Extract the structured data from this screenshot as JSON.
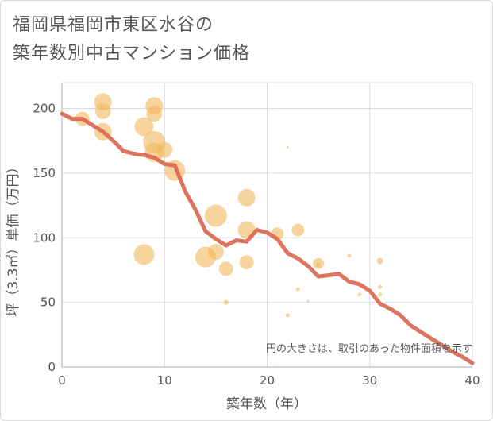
{
  "title_lines": [
    "福岡県福岡市東区水谷の",
    "築年数別中古マンション価格"
  ],
  "chart_data": {
    "type": "scatter",
    "title": "福岡県福岡市東区水谷の築年数別中古マンション価格",
    "xlabel": "築年数（年）",
    "ylabel": "坪（3.3㎡）単価（万円）",
    "xlim": [
      0,
      40
    ],
    "ylim": [
      0,
      220
    ],
    "xticks": [
      0,
      10,
      20,
      30,
      40
    ],
    "yticks": [
      0,
      50,
      100,
      150,
      200
    ],
    "grid": true,
    "note": "円の大きさは、取引のあった物件面積を示す",
    "colors": {
      "bubble": "#f2b75b",
      "line": "#d9654e",
      "grid": "#d5dbe5"
    },
    "bubbles": [
      {
        "x": 2,
        "y": 192,
        "s": 9
      },
      {
        "x": 4,
        "y": 205,
        "s": 11
      },
      {
        "x": 4,
        "y": 198,
        "s": 10
      },
      {
        "x": 4,
        "y": 182,
        "s": 11
      },
      {
        "x": 8,
        "y": 186,
        "s": 12
      },
      {
        "x": 9,
        "y": 202,
        "s": 11
      },
      {
        "x": 9,
        "y": 196,
        "s": 10
      },
      {
        "x": 9,
        "y": 174,
        "s": 14
      },
      {
        "x": 9,
        "y": 166,
        "s": 12
      },
      {
        "x": 10,
        "y": 168,
        "s": 10
      },
      {
        "x": 11,
        "y": 152,
        "s": 13
      },
      {
        "x": 8,
        "y": 87,
        "s": 13
      },
      {
        "x": 14,
        "y": 85,
        "s": 13
      },
      {
        "x": 15,
        "y": 117,
        "s": 14
      },
      {
        "x": 15,
        "y": 89,
        "s": 10
      },
      {
        "x": 16,
        "y": 76,
        "s": 9
      },
      {
        "x": 16,
        "y": 50,
        "s": 3
      },
      {
        "x": 18,
        "y": 131,
        "s": 11
      },
      {
        "x": 18,
        "y": 106,
        "s": 11
      },
      {
        "x": 18,
        "y": 81,
        "s": 9
      },
      {
        "x": 21,
        "y": 103,
        "s": 8
      },
      {
        "x": 22,
        "y": 170,
        "s": 1.5
      },
      {
        "x": 22,
        "y": 40,
        "s": 2.5
      },
      {
        "x": 23,
        "y": 106,
        "s": 8
      },
      {
        "x": 23,
        "y": 60,
        "s": 2.5
      },
      {
        "x": 24,
        "y": 51,
        "s": 1.5
      },
      {
        "x": 25,
        "y": 80,
        "s": 7
      },
      {
        "x": 25,
        "y": 79,
        "s": 3
      },
      {
        "x": 28,
        "y": 86,
        "s": 2.5
      },
      {
        "x": 29,
        "y": 56,
        "s": 2.5
      },
      {
        "x": 31,
        "y": 82,
        "s": 4
      },
      {
        "x": 31,
        "y": 62,
        "s": 2.5
      },
      {
        "x": 31,
        "y": 56,
        "s": 2.5
      }
    ],
    "trend": {
      "x": [
        0,
        1,
        2,
        3,
        4,
        5,
        6,
        7,
        8,
        9,
        10,
        11,
        12,
        13,
        14,
        15,
        16,
        17,
        18,
        19,
        20,
        21,
        22,
        23,
        24,
        25,
        26,
        27,
        28,
        29,
        30,
        31,
        32,
        33,
        34,
        35,
        36,
        37,
        38,
        39,
        40
      ],
      "y": [
        196,
        192,
        192,
        187,
        182,
        175,
        167,
        165,
        164,
        162,
        157,
        156,
        136,
        122,
        105,
        99,
        94,
        98,
        97,
        106,
        104,
        99,
        88,
        84,
        78,
        70,
        71,
        72,
        66,
        64,
        59,
        49,
        45,
        40,
        32,
        27,
        22,
        17,
        12,
        8,
        3
      ]
    }
  }
}
